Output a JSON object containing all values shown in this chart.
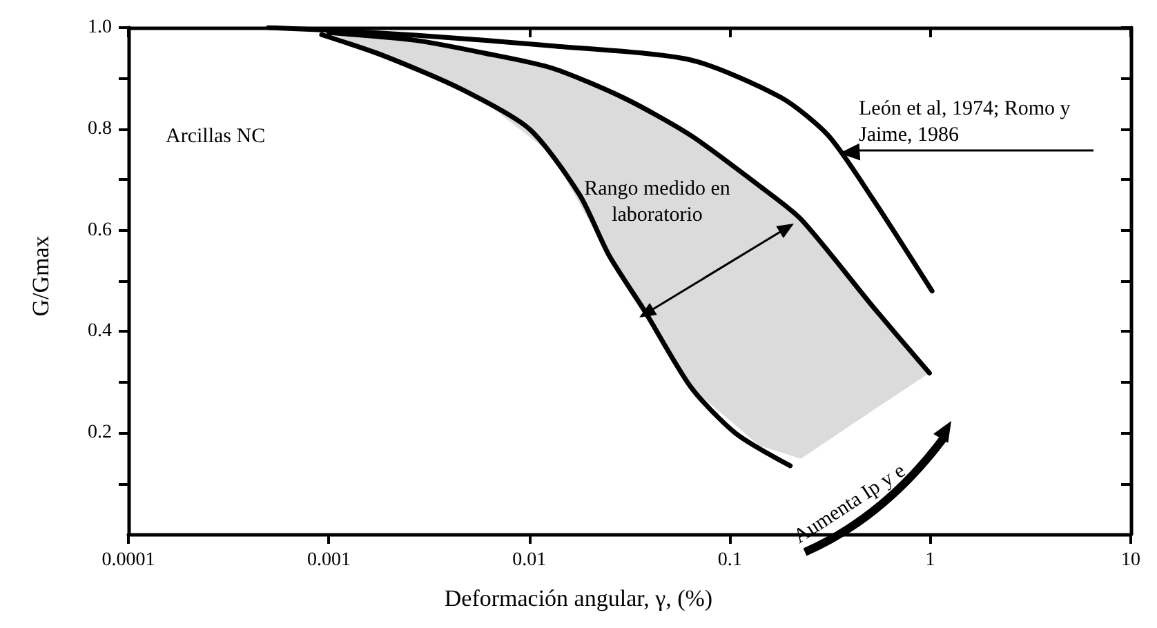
{
  "chart_data": {
    "type": "line",
    "xlabel": "Deformación angular, γ, (%)",
    "ylabel": "G/Gmax",
    "log": "x",
    "xlim": [
      0.0001,
      10
    ],
    "xticks": [
      0.0001,
      0.001,
      0.01,
      0.1,
      1,
      10
    ],
    "ylim": [
      0,
      1
    ],
    "yticks": [
      {
        "value": 0.1,
        "label": null
      },
      0.2,
      {
        "value": 0.3,
        "label": null
      },
      0.4,
      {
        "value": 0.5,
        "label": null
      },
      0.6,
      {
        "value": 0.7,
        "label": null
      },
      0.8,
      {
        "value": 0.9,
        "label": null
      },
      {
        "value": 1,
        "label": "1.0"
      }
    ],
    "grid": false,
    "marker": "none",
    "line_style": "solid",
    "series": [
      {
        "color": "#000000",
        "x": [
          0.0005,
          0.001,
          0.0027,
          0.013,
          0.064,
          0.18,
          0.31,
          0.52,
          1.02
        ],
        "values": [
          1.0,
          0.995,
          0.985,
          0.964,
          0.936,
          0.862,
          0.787,
          0.66,
          0.48
        ]
      },
      {
        "color": "#000000",
        "x": [
          0.001,
          0.0027,
          0.0059,
          0.013,
          0.03,
          0.064,
          0.14,
          0.226,
          0.52,
          0.99
        ],
        "values": [
          0.99,
          0.975,
          0.95,
          0.92,
          0.86,
          0.787,
          0.688,
          0.622,
          0.448,
          0.318
        ],
        "lower": [
          0.99,
          0.915,
          0.855,
          0.75,
          0.49,
          0.29,
          0.175,
          0.149,
          0.245,
          0.318
        ],
        "upper": [
          0.99,
          0.975,
          0.95,
          0.92,
          0.86,
          0.787,
          0.688,
          0.622,
          0.448,
          0.318
        ]
      },
      {
        "color": "#000000",
        "x": [
          0.00092,
          0.00186,
          0.0045,
          0.01,
          0.0178,
          0.025,
          0.0377,
          0.064,
          0.107,
          0.2
        ],
        "values": [
          0.986,
          0.945,
          0.88,
          0.8,
          0.67,
          0.55,
          0.44,
          0.29,
          0.199,
          0.135
        ]
      }
    ],
    "annotations": [
      "Arcillas NC",
      "León et al, 1974; Romo y Jaime, 1986",
      "Rango medido en laboratorio",
      "Aumenta Ip y e"
    ]
  }
}
